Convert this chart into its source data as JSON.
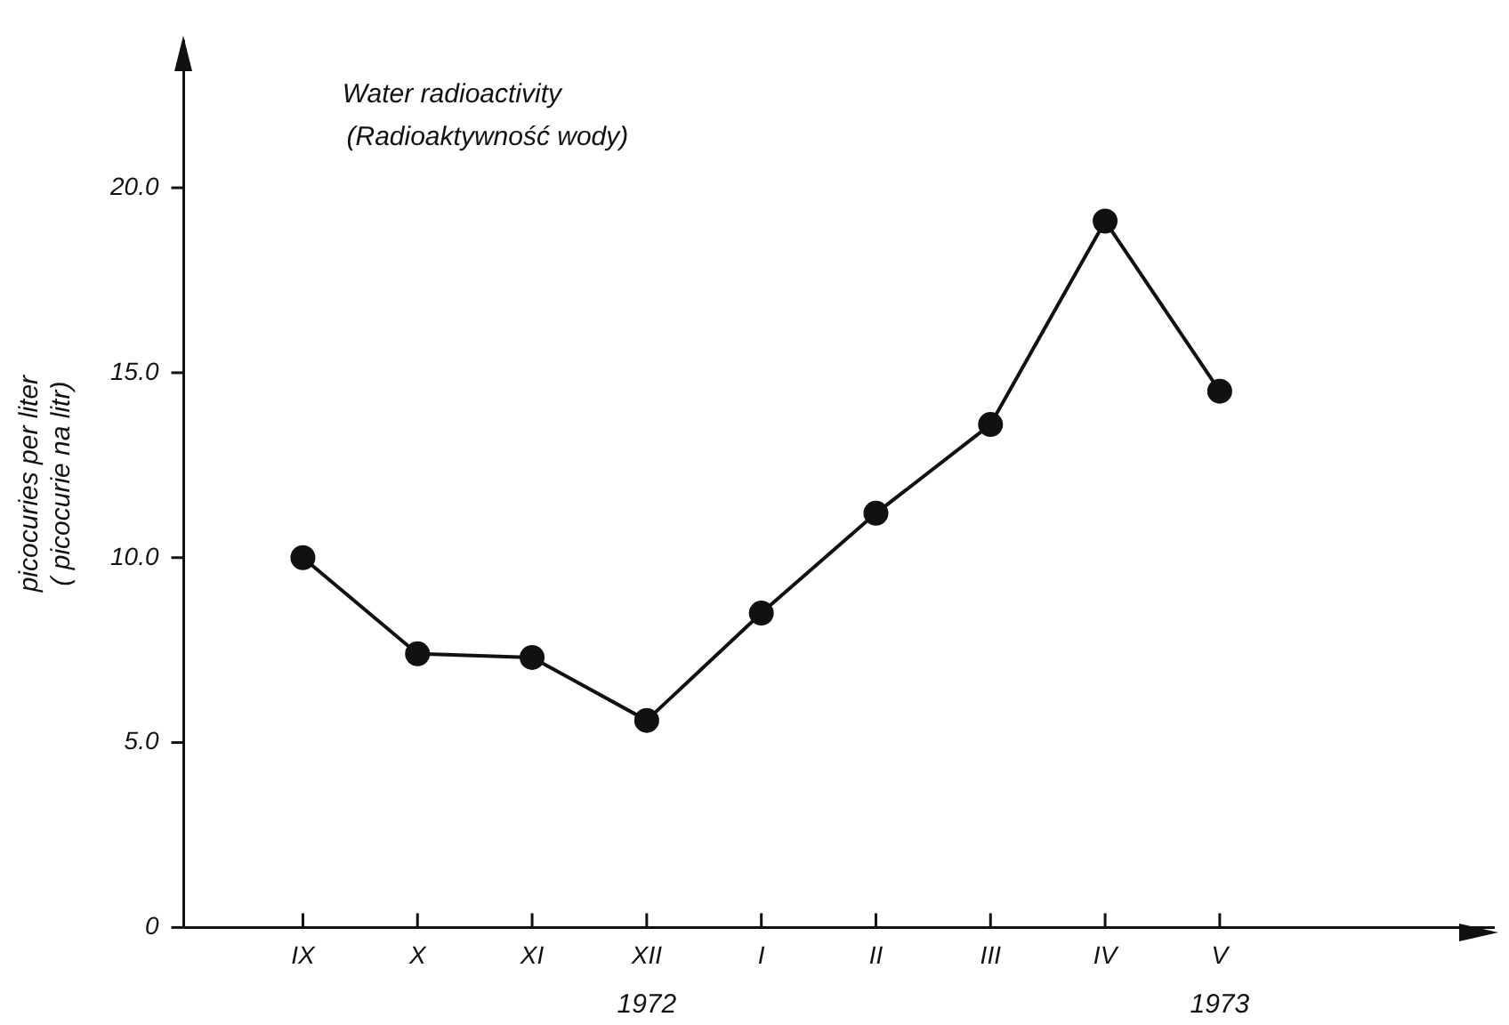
{
  "chart_data": {
    "type": "line",
    "title": "Water radioactivity\n(Radioaktywność wody)",
    "ylabel": "picocuries per liter\n( picocurie na litr)",
    "categories": [
      "IX",
      "X",
      "XI",
      "XII",
      "I",
      "II",
      "III",
      "IV",
      "V"
    ],
    "series": [
      {
        "color": "#111111",
        "values": [
          10.0,
          7.4,
          7.3,
          5.6,
          8.5,
          11.2,
          13.6,
          19.1,
          14.5
        ]
      }
    ],
    "ylim": [
      0,
      24
    ],
    "yticks": [
      0,
      {
        "value": 5,
        "label": "5.0"
      },
      {
        "value": 10,
        "label": "10.0"
      },
      {
        "value": 15,
        "label": "15.0"
      },
      {
        "value": 20,
        "label": "20.0"
      }
    ],
    "annotations": [
      "1972",
      "1973"
    ],
    "grid": false,
    "legend": false,
    "marker": "circle",
    "line_style": "solid"
  }
}
